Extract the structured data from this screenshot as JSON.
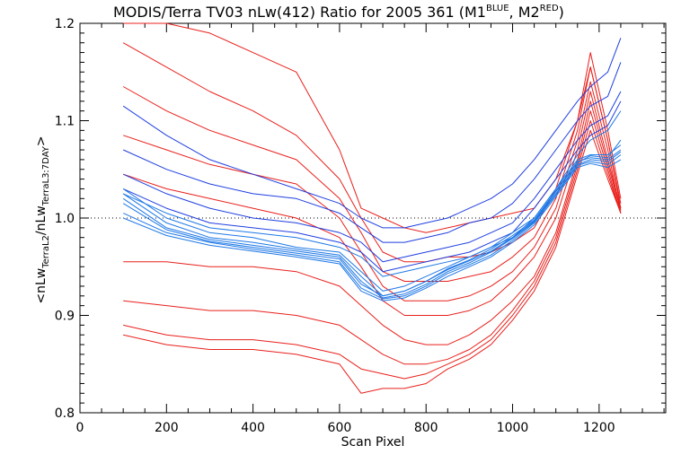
{
  "chart_data": {
    "type": "line",
    "title": {
      "main": "MODIS/Terra TV03 nLw(412) Ratio for 2005 361 (M1",
      "sup1": "BLUE",
      "mid": ", M2",
      "sup2": "RED",
      "end": ")"
    },
    "xlabel": "Scan Pixel",
    "ylabel": {
      "open": "<nLw",
      "sub1": "TerraL2",
      "slash": "/nLw",
      "sub2": "TerraL3:7DAY",
      "close": ">"
    },
    "xlim": [
      0,
      1354
    ],
    "ylim": [
      0.8,
      1.2
    ],
    "xticks": [
      0,
      200,
      400,
      600,
      800,
      1000,
      1200
    ],
    "yticks": [
      0.8,
      0.9,
      1.0,
      1.1,
      1.2
    ],
    "xtick_labels": [
      "0",
      "200",
      "400",
      "600",
      "800",
      "1000",
      "1200"
    ],
    "ytick_labels": [
      "0.8",
      "0.9",
      "1.0",
      "1.1",
      "1.2"
    ],
    "reference_line": {
      "y": 1.0,
      "style": "dotted"
    },
    "grid": false,
    "colors": {
      "m1": "#1f3fe0",
      "m1_light": "#1e78e6",
      "m2": "#e8201c",
      "ref": "#000000"
    },
    "x": [
      100,
      200,
      300,
      400,
      500,
      600,
      650,
      700,
      750,
      800,
      850,
      900,
      950,
      1000,
      1050,
      1100,
      1150,
      1180,
      1220,
      1250
    ],
    "series": [
      {
        "group": "M2",
        "values": [
          1.215,
          1.205,
          1.19,
          1.17,
          1.15,
          1.07,
          1.01,
          1.0,
          0.99,
          0.985,
          0.99,
          0.995,
          1.0,
          1.005,
          1.01,
          1.04,
          1.1,
          1.155,
          1.08,
          1.015
        ]
      },
      {
        "group": "M2",
        "values": [
          1.18,
          1.155,
          1.13,
          1.11,
          1.085,
          1.04,
          1.0,
          0.965,
          0.955,
          0.955,
          0.96,
          0.96,
          0.965,
          0.975,
          0.99,
          1.03,
          1.1,
          1.17,
          1.09,
          1.02
        ]
      },
      {
        "group": "M2",
        "values": [
          1.135,
          1.11,
          1.09,
          1.075,
          1.06,
          1.02,
          0.985,
          0.945,
          0.935,
          0.935,
          0.935,
          0.94,
          0.945,
          0.96,
          0.98,
          1.02,
          1.09,
          1.155,
          1.08,
          1.01
        ]
      },
      {
        "group": "M2",
        "values": [
          1.085,
          1.07,
          1.055,
          1.045,
          1.035,
          1.0,
          0.965,
          0.93,
          0.915,
          0.915,
          0.915,
          0.92,
          0.93,
          0.945,
          0.97,
          1.01,
          1.08,
          1.14,
          1.07,
          1.005
        ]
      },
      {
        "group": "M2",
        "values": [
          1.045,
          1.03,
          1.02,
          1.01,
          1.0,
          0.98,
          0.95,
          0.915,
          0.9,
          0.9,
          0.9,
          0.905,
          0.915,
          0.935,
          0.96,
          1.0,
          1.07,
          1.13,
          1.06,
          1.01
        ]
      },
      {
        "group": "M2",
        "values": [
          0.955,
          0.955,
          0.95,
          0.95,
          0.945,
          0.93,
          0.91,
          0.89,
          0.875,
          0.87,
          0.87,
          0.88,
          0.895,
          0.915,
          0.94,
          0.985,
          1.06,
          1.12,
          1.055,
          1.008
        ]
      },
      {
        "group": "M2",
        "values": [
          0.915,
          0.91,
          0.905,
          0.905,
          0.9,
          0.89,
          0.875,
          0.86,
          0.85,
          0.85,
          0.855,
          0.865,
          0.88,
          0.905,
          0.935,
          0.98,
          1.055,
          1.11,
          1.05,
          1.005
        ]
      },
      {
        "group": "M2",
        "values": [
          0.89,
          0.88,
          0.875,
          0.875,
          0.87,
          0.86,
          0.845,
          0.84,
          0.835,
          0.84,
          0.85,
          0.86,
          0.875,
          0.9,
          0.93,
          0.975,
          1.05,
          1.1,
          1.045,
          1.005
        ]
      },
      {
        "group": "M2",
        "values": [
          0.88,
          0.87,
          0.865,
          0.865,
          0.86,
          0.85,
          0.82,
          0.825,
          0.825,
          0.83,
          0.845,
          0.855,
          0.87,
          0.895,
          0.925,
          0.97,
          1.045,
          1.09,
          1.04,
          1.005
        ]
      },
      {
        "group": "M1",
        "values": [
          1.115,
          1.085,
          1.06,
          1.045,
          1.03,
          1.015,
          1.0,
          0.99,
          0.99,
          0.995,
          1.0,
          1.01,
          1.02,
          1.035,
          1.06,
          1.09,
          1.12,
          1.135,
          1.15,
          1.185
        ]
      },
      {
        "group": "M1",
        "values": [
          1.07,
          1.05,
          1.035,
          1.025,
          1.02,
          1.005,
          0.99,
          0.975,
          0.975,
          0.98,
          0.985,
          0.995,
          1.0,
          1.015,
          1.04,
          1.07,
          1.1,
          1.115,
          1.125,
          1.16
        ]
      },
      {
        "group": "M1",
        "values": [
          1.045,
          1.025,
          1.01,
          1.0,
          0.995,
          0.985,
          0.975,
          0.955,
          0.96,
          0.965,
          0.97,
          0.975,
          0.985,
          0.995,
          1.02,
          1.05,
          1.08,
          1.095,
          1.105,
          1.13
        ]
      },
      {
        "group": "M1",
        "values": [
          1.03,
          1.01,
          0.995,
          0.99,
          0.985,
          0.975,
          0.965,
          0.945,
          0.95,
          0.955,
          0.96,
          0.965,
          0.975,
          0.985,
          1.01,
          1.04,
          1.07,
          1.085,
          1.095,
          1.12
        ]
      },
      {
        "group": "M1",
        "values": [
          1.025,
          1.005,
          0.99,
          0.985,
          0.98,
          0.97,
          0.96,
          0.94,
          0.945,
          0.95,
          0.955,
          0.96,
          0.97,
          0.98,
          1.0,
          1.03,
          1.065,
          1.08,
          1.09,
          1.11
        ]
      },
      {
        "group": "M1",
        "values": [
          1.03,
          1.0,
          0.985,
          0.98,
          0.97,
          0.965,
          0.945,
          0.925,
          0.93,
          0.94,
          0.95,
          0.96,
          0.97,
          0.985,
          1.0,
          1.03,
          1.06,
          1.065,
          1.065,
          1.075
        ]
      },
      {
        "group": "M1",
        "values": [
          1.025,
          0.995,
          0.98,
          0.975,
          0.968,
          0.962,
          0.94,
          0.92,
          0.925,
          0.935,
          0.948,
          0.957,
          0.968,
          0.982,
          0.998,
          1.028,
          1.058,
          1.062,
          1.06,
          1.07
        ]
      },
      {
        "group": "M1",
        "values": [
          1.02,
          0.99,
          0.978,
          0.972,
          0.966,
          0.96,
          0.935,
          0.918,
          0.922,
          0.932,
          0.945,
          0.954,
          0.965,
          0.979,
          0.996,
          1.025,
          1.055,
          1.06,
          1.058,
          1.068
        ]
      },
      {
        "group": "M1",
        "values": [
          1.015,
          0.988,
          0.976,
          0.97,
          0.964,
          0.958,
          0.932,
          0.92,
          0.925,
          0.935,
          0.947,
          0.956,
          0.966,
          0.98,
          0.997,
          1.027,
          1.057,
          1.064,
          1.062,
          1.08
        ]
      },
      {
        "group": "M1",
        "values": [
          1.005,
          0.985,
          0.975,
          0.968,
          0.962,
          0.955,
          0.928,
          0.917,
          0.92,
          0.93,
          0.943,
          0.952,
          0.962,
          0.977,
          0.995,
          1.024,
          1.054,
          1.058,
          1.055,
          1.065
        ]
      },
      {
        "group": "M1",
        "values": [
          1.0,
          0.982,
          0.972,
          0.966,
          0.96,
          0.953,
          0.925,
          0.915,
          0.918,
          0.928,
          0.94,
          0.95,
          0.96,
          0.975,
          0.993,
          1.022,
          1.052,
          1.056,
          1.052,
          1.06
        ]
      }
    ]
  }
}
